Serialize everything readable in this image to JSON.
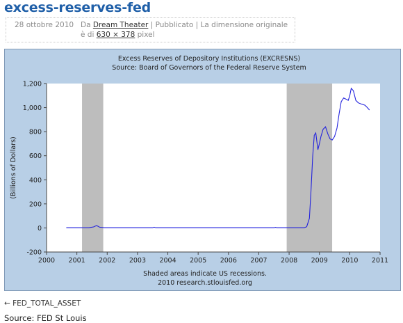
{
  "post": {
    "title": "excess-reserves-fed",
    "date": "28 ottobre 2010",
    "author_prefix": "Da",
    "author": "Dream Theater",
    "sep1": "|",
    "published": "Pubblicato",
    "sep2": "|",
    "dim_text": "La dimensione originale è di",
    "dimensions": "630 × 378",
    "unit": "pixel"
  },
  "footer": {
    "back_link": "← FED_TOTAL_ASSET",
    "source": "Source: FED St Louis"
  },
  "colors": {
    "series": "#2222dd",
    "recession": "#bdbdbd",
    "frame": "#b8cfe6"
  },
  "chart_data": {
    "type": "line",
    "title": "Excess Reserves of Depository Institutions (EXCRESNS)",
    "subtitle": "Source: Board of Governors of the Federal Reserve System",
    "ylabel": "(Billions of Dollars)",
    "xlabel": "",
    "footnote1": "Shaded areas indicate US recessions.",
    "footnote2": "2010 research.stlouisfed.org",
    "xlim": [
      2000,
      2011
    ],
    "ylim": [
      -200,
      1200
    ],
    "xticks": [
      "2000",
      "2001",
      "2002",
      "2003",
      "2004",
      "2005",
      "2006",
      "2007",
      "2008",
      "2009",
      "2010",
      "2011"
    ],
    "yticks": [
      "-200",
      "0",
      "200",
      "400",
      "600",
      "800",
      "1,000",
      "1,200"
    ],
    "recessions": [
      [
        2001.17,
        2001.87
      ],
      [
        2007.92,
        2009.42
      ]
    ],
    "series": [
      {
        "x": [
          2000.65,
          2001.4,
          2001.55,
          2001.65,
          2001.75,
          2001.9,
          2003.5,
          2003.55,
          2003.6,
          2007.5,
          2007.55,
          2007.6,
          2008.0,
          2008.5,
          2008.58,
          2008.67,
          2008.72,
          2008.78,
          2008.83,
          2008.88,
          2008.95,
          2009.0,
          2009.05,
          2009.12,
          2009.2,
          2009.28,
          2009.35,
          2009.42,
          2009.5,
          2009.58,
          2009.65,
          2009.72,
          2009.8,
          2009.88,
          2009.95,
          2010.0,
          2010.05,
          2010.12,
          2010.2,
          2010.28,
          2010.38,
          2010.5,
          2010.58,
          2010.65
        ],
        "values": [
          2,
          2,
          8,
          20,
          6,
          2,
          2,
          6,
          2,
          2,
          5,
          2,
          2,
          2,
          10,
          80,
          300,
          600,
          770,
          790,
          650,
          700,
          760,
          820,
          840,
          780,
          740,
          730,
          760,
          830,
          950,
          1050,
          1080,
          1070,
          1060,
          1100,
          1160,
          1140,
          1060,
          1040,
          1030,
          1020,
          1000,
          980
        ]
      }
    ]
  }
}
